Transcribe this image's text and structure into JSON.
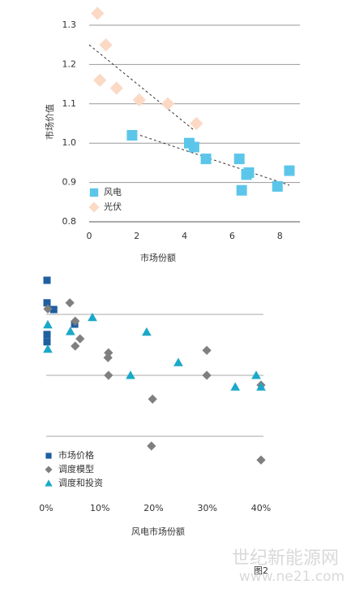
{
  "chart_data": [
    {
      "type": "scatter",
      "y_label": "市场价值",
      "x_label": "市场份额",
      "xlim": [
        0,
        8.8
      ],
      "ylim": [
        0.8,
        1.35
      ],
      "xticks": [
        0,
        2,
        4,
        6,
        8
      ],
      "yticks": [
        0.8,
        0.9,
        {
          "value": 1,
          "label": "1.0"
        },
        1.1,
        1.2,
        1.3
      ],
      "grid": true,
      "series": [
        {
          "name": "风电",
          "color": "#5cc6ea",
          "marker": "square",
          "x": [
            1.8,
            4.2,
            4.4,
            4.9,
            6.3,
            6.6,
            6.7,
            6.4,
            7.9,
            8.4
          ],
          "y": [
            1.02,
            1.0,
            0.99,
            0.96,
            0.96,
            0.92,
            0.925,
            0.88,
            0.89,
            0.93
          ]
        },
        {
          "name": "光伏",
          "color": "#fbd9c4",
          "marker": "diamond",
          "x": [
            0.35,
            0.7,
            0.45,
            1.15,
            2.1,
            3.3,
            4.5
          ],
          "y": [
            1.33,
            1.25,
            1.16,
            1.14,
            1.11,
            1.1,
            1.05
          ]
        }
      ],
      "trend_lines": [
        {
          "x": [
            0,
            4.4
          ],
          "y": [
            1.25,
            1.033
          ]
        },
        {
          "x": [
            2.14,
            8.4
          ],
          "y": [
            1.02,
            0.893
          ]
        }
      ]
    },
    {
      "type": "scatter",
      "x_label": "风电市场份额",
      "xlim": [
        0,
        40.5
      ],
      "ylim": [
        0,
        3.6
      ],
      "xticks": [
        {
          "value": 0,
          "label": "0%"
        },
        {
          "value": 10,
          "label": "10%"
        },
        {
          "value": 20,
          "label": "20%"
        },
        {
          "value": 30,
          "label": "30%"
        },
        {
          "value": 40,
          "label": "40%"
        }
      ],
      "gridlines": [
        1,
        2,
        3
      ],
      "series": [
        {
          "name": "市场价格",
          "color": "#1f5fa0",
          "marker": "square",
          "x": [
            0.15,
            0.15,
            1.4,
            0.15,
            0.15,
            5.3
          ],
          "y": [
            3.56,
            3.19,
            3.08,
            2.67,
            2.55,
            2.84
          ]
        },
        {
          "name": "调度模型",
          "color": "#7f7f7f",
          "marker": "diamond",
          "x": [
            0.3,
            4.4,
            5.4,
            6.3,
            5.4,
            11.6,
            11.5,
            11.6,
            19.8,
            29.9,
            29.9,
            40,
            19.6,
            40
          ],
          "y": [
            3.09,
            3.19,
            2.89,
            2.6,
            2.48,
            2.37,
            2.29,
            2.0,
            1.61,
            2.41,
            2.0,
            1.84,
            0.84,
            0.61
          ]
        },
        {
          "name": "调度和投资",
          "color": "#1aa9c8",
          "marker": "triangle",
          "x": [
            0.3,
            0.3,
            4.5,
            8.6,
            18.7,
            15.7,
            24.6,
            35.2,
            39.1,
            40
          ],
          "y": [
            2.83,
            2.43,
            2.72,
            2.95,
            2.71,
            2.0,
            2.21,
            1.81,
            2.0,
            1.81
          ]
        }
      ]
    }
  ],
  "figure_label": "图2",
  "watermark": {
    "text": "世纪新能源网",
    "url": "www.ne21.com"
  }
}
